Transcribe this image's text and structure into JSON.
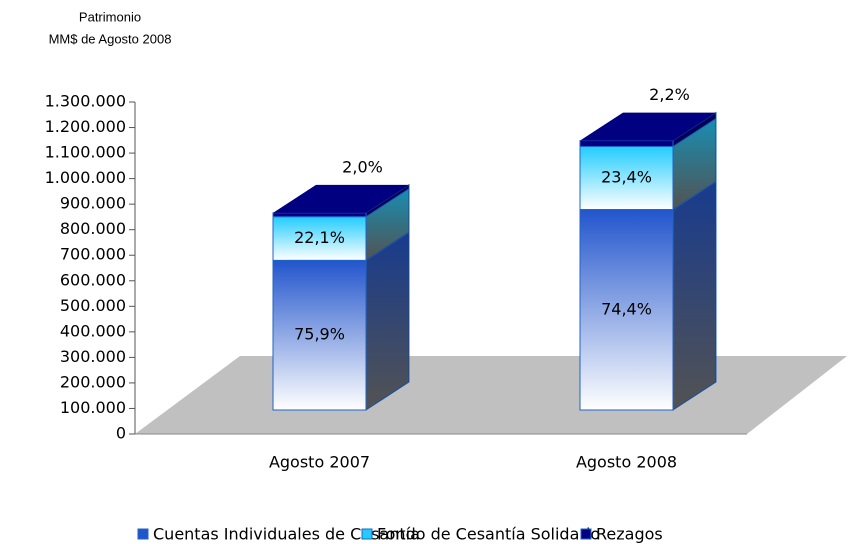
{
  "chart_data": {
    "type": "bar3d_stacked",
    "title": "Patrimonio",
    "subtitle": "MM$ de Agosto 2008",
    "categories": [
      "Agosto 2007",
      "Agosto 2008"
    ],
    "series": [
      {
        "name": "Cuentas Individuales de Cesantía",
        "color": "#2255cc",
        "values": [
          586000,
          785000
        ],
        "percent_labels": [
          "75,9%",
          "74,4%"
        ]
      },
      {
        "name": "Fondo de Cesantía Solidario",
        "color": "#22ccff",
        "values": [
          171000,
          247000
        ],
        "percent_labels": [
          "22,1%",
          "23,4%"
        ]
      },
      {
        "name": "Rezagos",
        "color": "#000080",
        "values": [
          15000,
          23000
        ],
        "percent_labels": [
          "2,0%",
          "2,2%"
        ]
      }
    ],
    "ylim": [
      0,
      1300000
    ],
    "yticks": [
      0,
      {
        "value": 100000,
        "label": "100.000"
      },
      {
        "value": 200000,
        "label": "200.000"
      },
      {
        "value": 300000,
        "label": "300.000"
      },
      {
        "value": 400000,
        "label": "400.000"
      },
      {
        "value": 500000,
        "label": "500.000"
      },
      {
        "value": 600000,
        "label": "600.000"
      },
      {
        "value": 700000,
        "label": "700.000"
      },
      {
        "value": 800000,
        "label": "800.000"
      },
      {
        "value": 900000,
        "label": "900.000"
      },
      {
        "value": 1000000,
        "label": "1.000.000"
      },
      {
        "value": 1100000,
        "label": "1.100.000"
      },
      {
        "value": 1200000,
        "label": "1.200.000"
      },
      {
        "value": 1300000,
        "label": "1.300.000"
      }
    ]
  }
}
